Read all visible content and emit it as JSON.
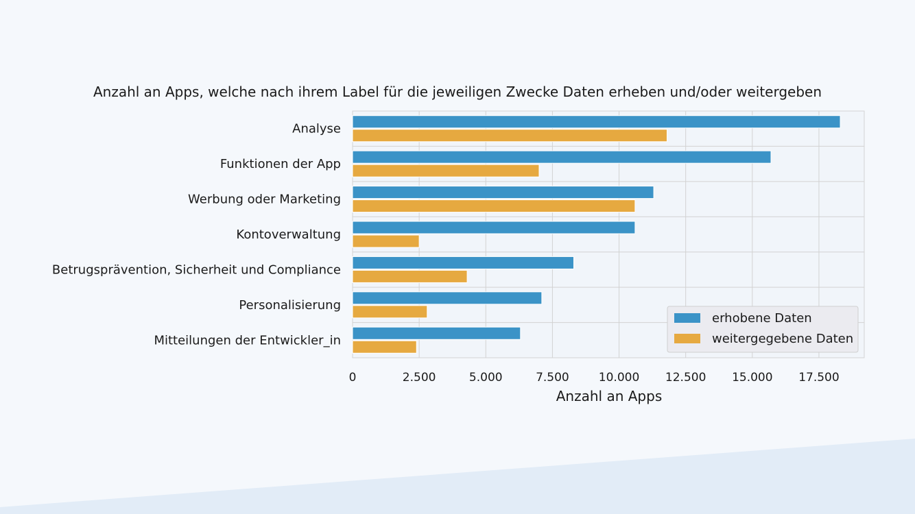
{
  "chart_data": {
    "type": "bar",
    "orientation": "horizontal",
    "title": "Anzahl an Apps, welche nach ihrem Label für die jeweiligen Zwecke Daten erheben und/oder weitergeben",
    "xlabel": "Anzahl an Apps",
    "ylabel": "",
    "categories": [
      "Analyse",
      "Funktionen der App",
      "Werbung oder Marketing",
      "Kontoverwaltung",
      "Betrugsprävention, Sicherheit und Compliance",
      "Personalisierung",
      "Mitteilungen der Entwickler_in"
    ],
    "series": [
      {
        "name": "erhobene Daten",
        "color": "#3b93c7",
        "values": [
          18300,
          15700,
          11300,
          10600,
          8300,
          7100,
          6300
        ]
      },
      {
        "name": "weitergegebene Daten",
        "color": "#e6a940",
        "values": [
          11800,
          7000,
          10600,
          2500,
          4300,
          2800,
          2400
        ]
      }
    ],
    "xticks": [
      0,
      2500,
      5000,
      7500,
      10000,
      12500,
      15000,
      17500
    ],
    "xtick_labels": [
      "0",
      "2.500",
      "5.000",
      "7.500",
      "10.000",
      "12.500",
      "15.000",
      "17.500"
    ],
    "xlim": [
      0,
      19200
    ],
    "grid": true,
    "legend_position": "bottom-right"
  }
}
